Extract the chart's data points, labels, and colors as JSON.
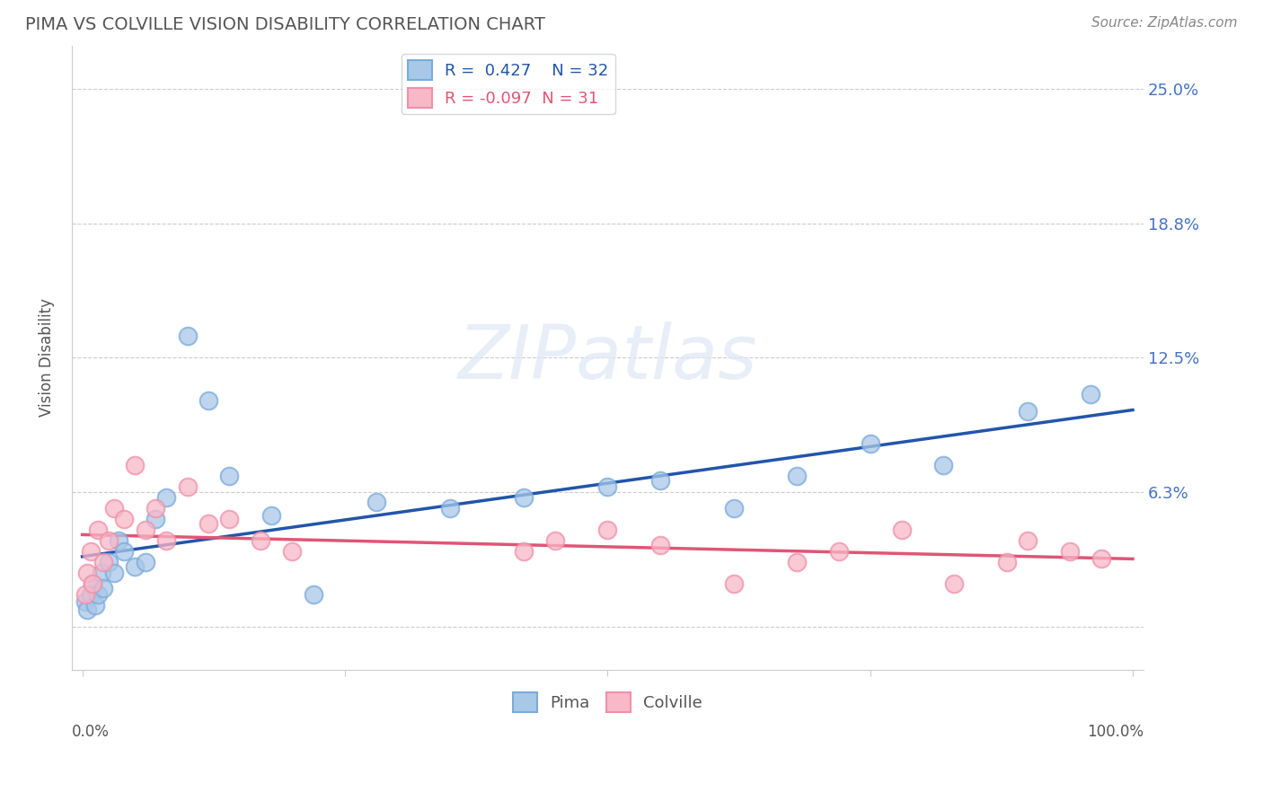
{
  "title": "PIMA VS COLVILLE VISION DISABILITY CORRELATION CHART",
  "source": "Source: ZipAtlas.com",
  "ylabel": "Vision Disability",
  "pima_R": 0.427,
  "pima_N": 32,
  "colville_R": -0.097,
  "colville_N": 31,
  "pima_color": "#A8C8E8",
  "pima_edge_color": "#7AAADC",
  "colville_color": "#F8B8C8",
  "colville_edge_color": "#F090A8",
  "pima_line_color": "#2255AA",
  "colville_line_color": "#E05575",
  "background_color": "#ffffff",
  "grid_color": "#cccccc",
  "ytick_vals": [
    0,
    6.25,
    12.5,
    18.75,
    25.0
  ],
  "ytick_labels": [
    "",
    "6.3%",
    "12.5%",
    "18.8%",
    "25.0%"
  ],
  "pima_x": [
    0.3,
    0.5,
    0.8,
    1.0,
    1.2,
    1.5,
    1.8,
    2.0,
    2.5,
    3.0,
    3.5,
    4.0,
    5.0,
    6.0,
    7.0,
    8.0,
    10.0,
    12.0,
    14.0,
    18.0,
    22.0,
    28.0,
    35.0,
    42.0,
    50.0,
    55.0,
    62.0,
    68.0,
    75.0,
    82.0,
    90.0,
    96.0
  ],
  "pima_y": [
    1.2,
    0.8,
    1.5,
    2.0,
    1.0,
    1.5,
    2.5,
    1.8,
    3.0,
    2.5,
    4.0,
    3.5,
    2.8,
    3.0,
    5.0,
    6.0,
    13.5,
    10.5,
    7.0,
    5.2,
    1.5,
    5.8,
    5.5,
    6.0,
    6.5,
    6.8,
    5.5,
    7.0,
    8.5,
    7.5,
    10.0,
    10.8
  ],
  "colville_x": [
    0.3,
    0.5,
    0.8,
    1.0,
    1.5,
    2.0,
    2.5,
    3.0,
    4.0,
    5.0,
    6.0,
    7.0,
    8.0,
    10.0,
    12.0,
    14.0,
    17.0,
    20.0,
    42.0,
    45.0,
    50.0,
    55.0,
    62.0,
    68.0,
    72.0,
    78.0,
    83.0,
    88.0,
    90.0,
    94.0,
    97.0
  ],
  "colville_y": [
    1.5,
    2.5,
    3.5,
    2.0,
    4.5,
    3.0,
    4.0,
    5.5,
    5.0,
    7.5,
    4.5,
    5.5,
    4.0,
    6.5,
    4.8,
    5.0,
    4.0,
    3.5,
    3.5,
    4.0,
    4.5,
    3.8,
    2.0,
    3.0,
    3.5,
    4.5,
    2.0,
    3.0,
    4.0,
    3.5,
    3.2
  ]
}
